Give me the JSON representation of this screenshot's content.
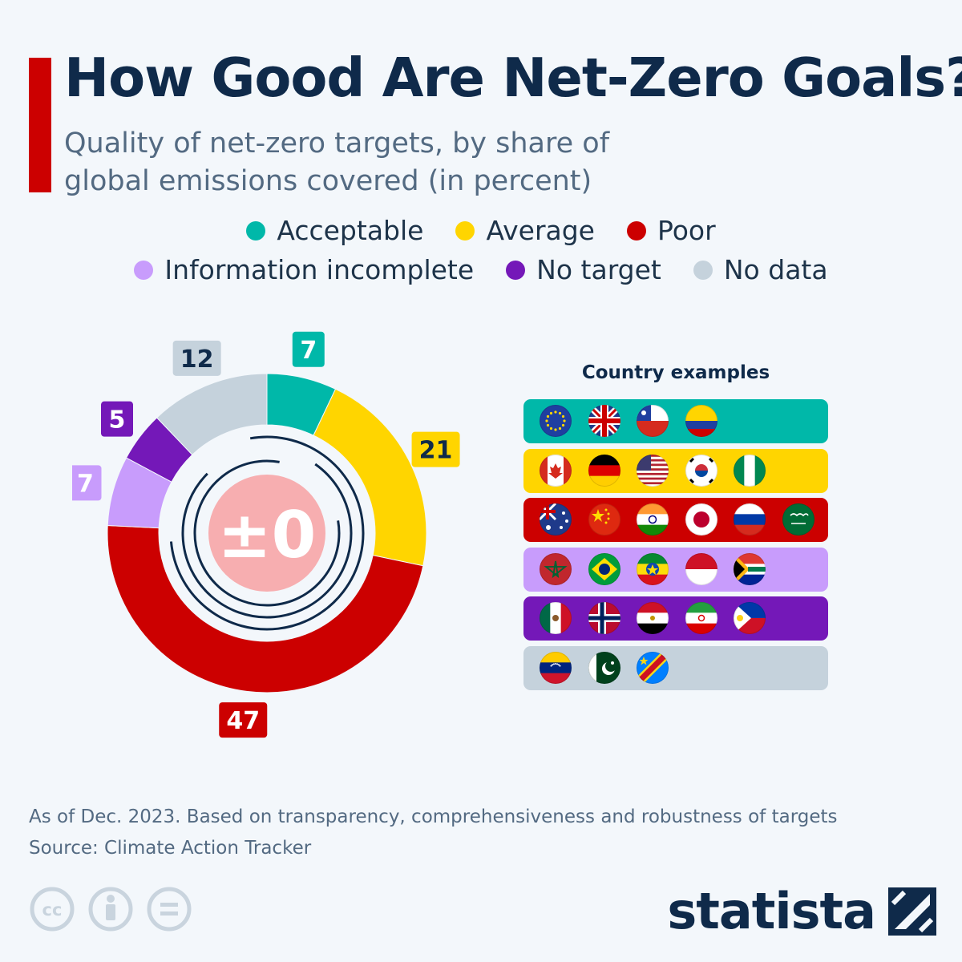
{
  "header": {
    "title": "How Good Are Net-Zero Goals?",
    "subtitle": "Quality of net-zero targets, by share of global emissions covered (in percent)"
  },
  "legend": [
    {
      "label": "Acceptable",
      "color": "#00b8a9"
    },
    {
      "label": "Average",
      "color": "#ffd500"
    },
    {
      "label": "Poor",
      "color": "#cc0000"
    },
    {
      "label": "Information incomplete",
      "color": "#c89cfc"
    },
    {
      "label": "No target",
      "color": "#7418b8"
    },
    {
      "label": "No data",
      "color": "#c5d2dc"
    }
  ],
  "chart_data": {
    "type": "pie",
    "title": "How Good Are Net-Zero Goals?",
    "subtitle": "Quality of net-zero targets, by share of global emissions covered (in percent)",
    "categories": [
      "Acceptable",
      "Average",
      "Poor",
      "Information incomplete",
      "No target",
      "No data"
    ],
    "values": [
      7,
      21,
      47,
      7,
      5,
      12
    ],
    "value_labels": [
      "7",
      "21",
      "47",
      "7",
      "5",
      "12"
    ],
    "colors": [
      "#00b8a9",
      "#ffd500",
      "#cc0000",
      "#c89cfc",
      "#7418b8",
      "#c5d2dc"
    ],
    "label_colors": [
      "#ffffff",
      "#0f2a4a",
      "#ffffff",
      "#ffffff",
      "#ffffff",
      "#0f2a4a"
    ],
    "center_label": "±0",
    "legend_position": "top"
  },
  "country_examples": {
    "title": "Country examples",
    "rows": [
      {
        "category": "Acceptable",
        "color": "#00b8a9",
        "flags": [
          "european-union",
          "united-kingdom",
          "chile",
          "colombia"
        ]
      },
      {
        "category": "Average",
        "color": "#ffd500",
        "flags": [
          "canada",
          "germany",
          "united-states",
          "south-korea",
          "nigeria"
        ]
      },
      {
        "category": "Poor",
        "color": "#cc0000",
        "flags": [
          "australia",
          "china",
          "india",
          "japan",
          "russia",
          "saudi-arabia"
        ]
      },
      {
        "category": "Information incomplete",
        "color": "#c89cfc",
        "flags": [
          "morocco",
          "brazil",
          "ethiopia",
          "indonesia",
          "south-africa"
        ]
      },
      {
        "category": "No target",
        "color": "#7418b8",
        "flags": [
          "mexico",
          "norway",
          "egypt",
          "iran",
          "philippines"
        ]
      },
      {
        "category": "No data",
        "color": "#c5d2dc",
        "flags": [
          "venezuela",
          "pakistan",
          "dr-congo"
        ]
      }
    ]
  },
  "footer": {
    "note": "As of Dec. 2023. Based on transparency, comprehensiveness and robustness of targets",
    "source": "Source: Climate Action Tracker",
    "brand": "statista",
    "license_icons": [
      "cc-icon",
      "attribution-icon",
      "no-derivatives-icon"
    ]
  }
}
